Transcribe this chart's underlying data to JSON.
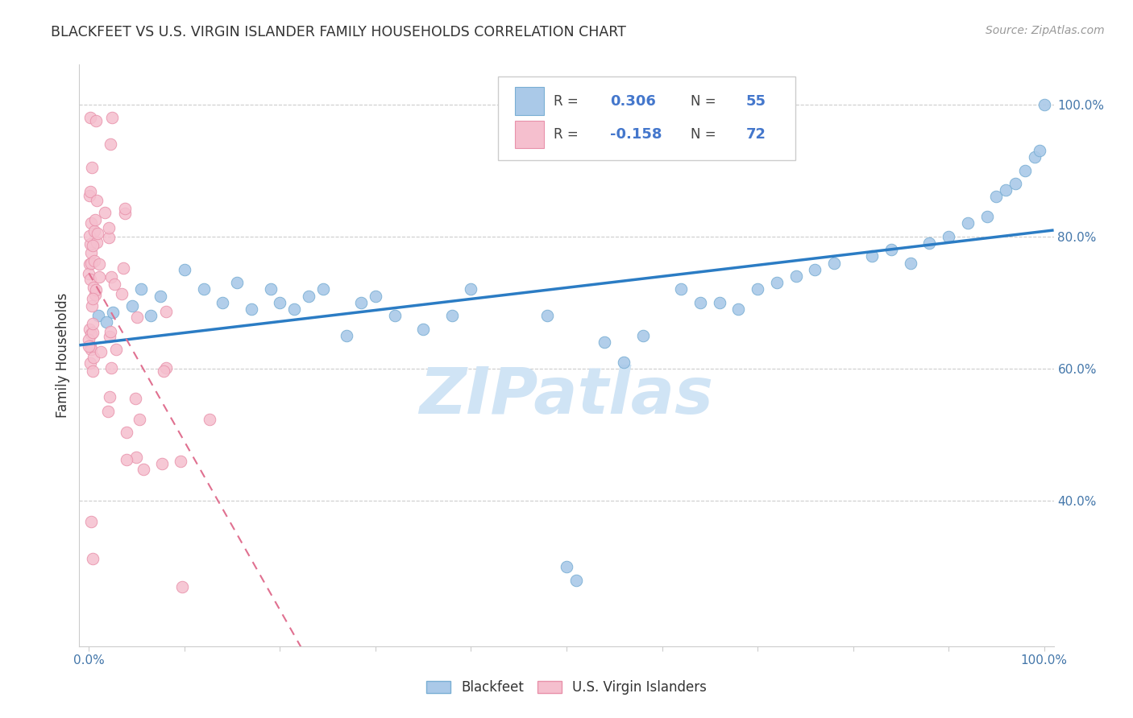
{
  "title": "BLACKFEET VS U.S. VIRGIN ISLANDER FAMILY HOUSEHOLDS CORRELATION CHART",
  "source": "Source: ZipAtlas.com",
  "ylabel": "Family Households",
  "r_blackfeet": 0.306,
  "n_blackfeet": 55,
  "r_virgin": -0.158,
  "n_virgin": 72,
  "blackfeet_color": "#aac9e8",
  "blackfeet_edge": "#7aafd4",
  "virgin_color": "#f5bfce",
  "virgin_edge": "#e891aa",
  "trend_blackfeet_color": "#2b7cc4",
  "trend_virgin_color": "#e07090",
  "watermark_color": "#d0e4f5",
  "grid_color": "#cccccc",
  "tick_color": "#4477aa",
  "title_color": "#333333",
  "source_color": "#999999",
  "legend_r_color": "#4477cc",
  "ylim_min": 0.18,
  "ylim_max": 1.06,
  "xlim_min": -0.01,
  "xlim_max": 1.01
}
